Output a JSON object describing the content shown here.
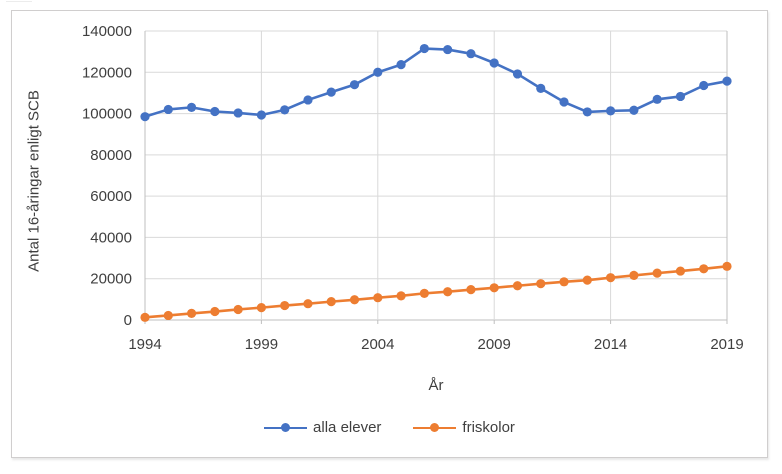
{
  "chart_data": {
    "type": "line",
    "x": [
      1994,
      1995,
      1996,
      1997,
      1998,
      1999,
      2000,
      2001,
      2002,
      2003,
      2004,
      2005,
      2006,
      2007,
      2008,
      2009,
      2010,
      2011,
      2012,
      2013,
      2014,
      2015,
      2016,
      2017,
      2018,
      2019
    ],
    "series": [
      {
        "name": "alla elever",
        "color": "#4472C4",
        "values": [
          98500,
          102000,
          103000,
          101000,
          100300,
          99300,
          101800,
          106600,
          110400,
          114000,
          120000,
          123700,
          131500,
          131000,
          129000,
          124500,
          119200,
          112200,
          105600,
          100800,
          101300,
          101600,
          106900,
          108300,
          113600,
          115700
        ]
      },
      {
        "name": "friskolor",
        "color": "#ED7D31",
        "values": [
          1300,
          2200,
          3200,
          4100,
          5100,
          6000,
          7000,
          7900,
          8900,
          9800,
          10800,
          11700,
          12900,
          13700,
          14700,
          15600,
          16600,
          17600,
          18500,
          19300,
          20500,
          21600,
          22700,
          23700,
          24800,
          26000
        ]
      }
    ],
    "title": "",
    "xlabel": "År",
    "ylabel": "Antal 16-åringar enligt SCB",
    "ylim": [
      0,
      140000
    ],
    "yticks": [
      0,
      20000,
      40000,
      60000,
      80000,
      100000,
      120000,
      140000
    ],
    "xticks": [
      1994,
      1999,
      2004,
      2009,
      2014,
      2019
    ],
    "grid": true,
    "legend_position": "bottom"
  },
  "legend": {
    "items": [
      {
        "label": "alla elever",
        "color": "#4472C4"
      },
      {
        "label": "friskolor",
        "color": "#ED7D31"
      }
    ]
  },
  "colors": {
    "gridline": "#d9d9d9",
    "axis_line": "#bfbfbf",
    "tick_label": "#3f3f3f",
    "chart_border": "#d0cece",
    "background": "#ffffff"
  }
}
